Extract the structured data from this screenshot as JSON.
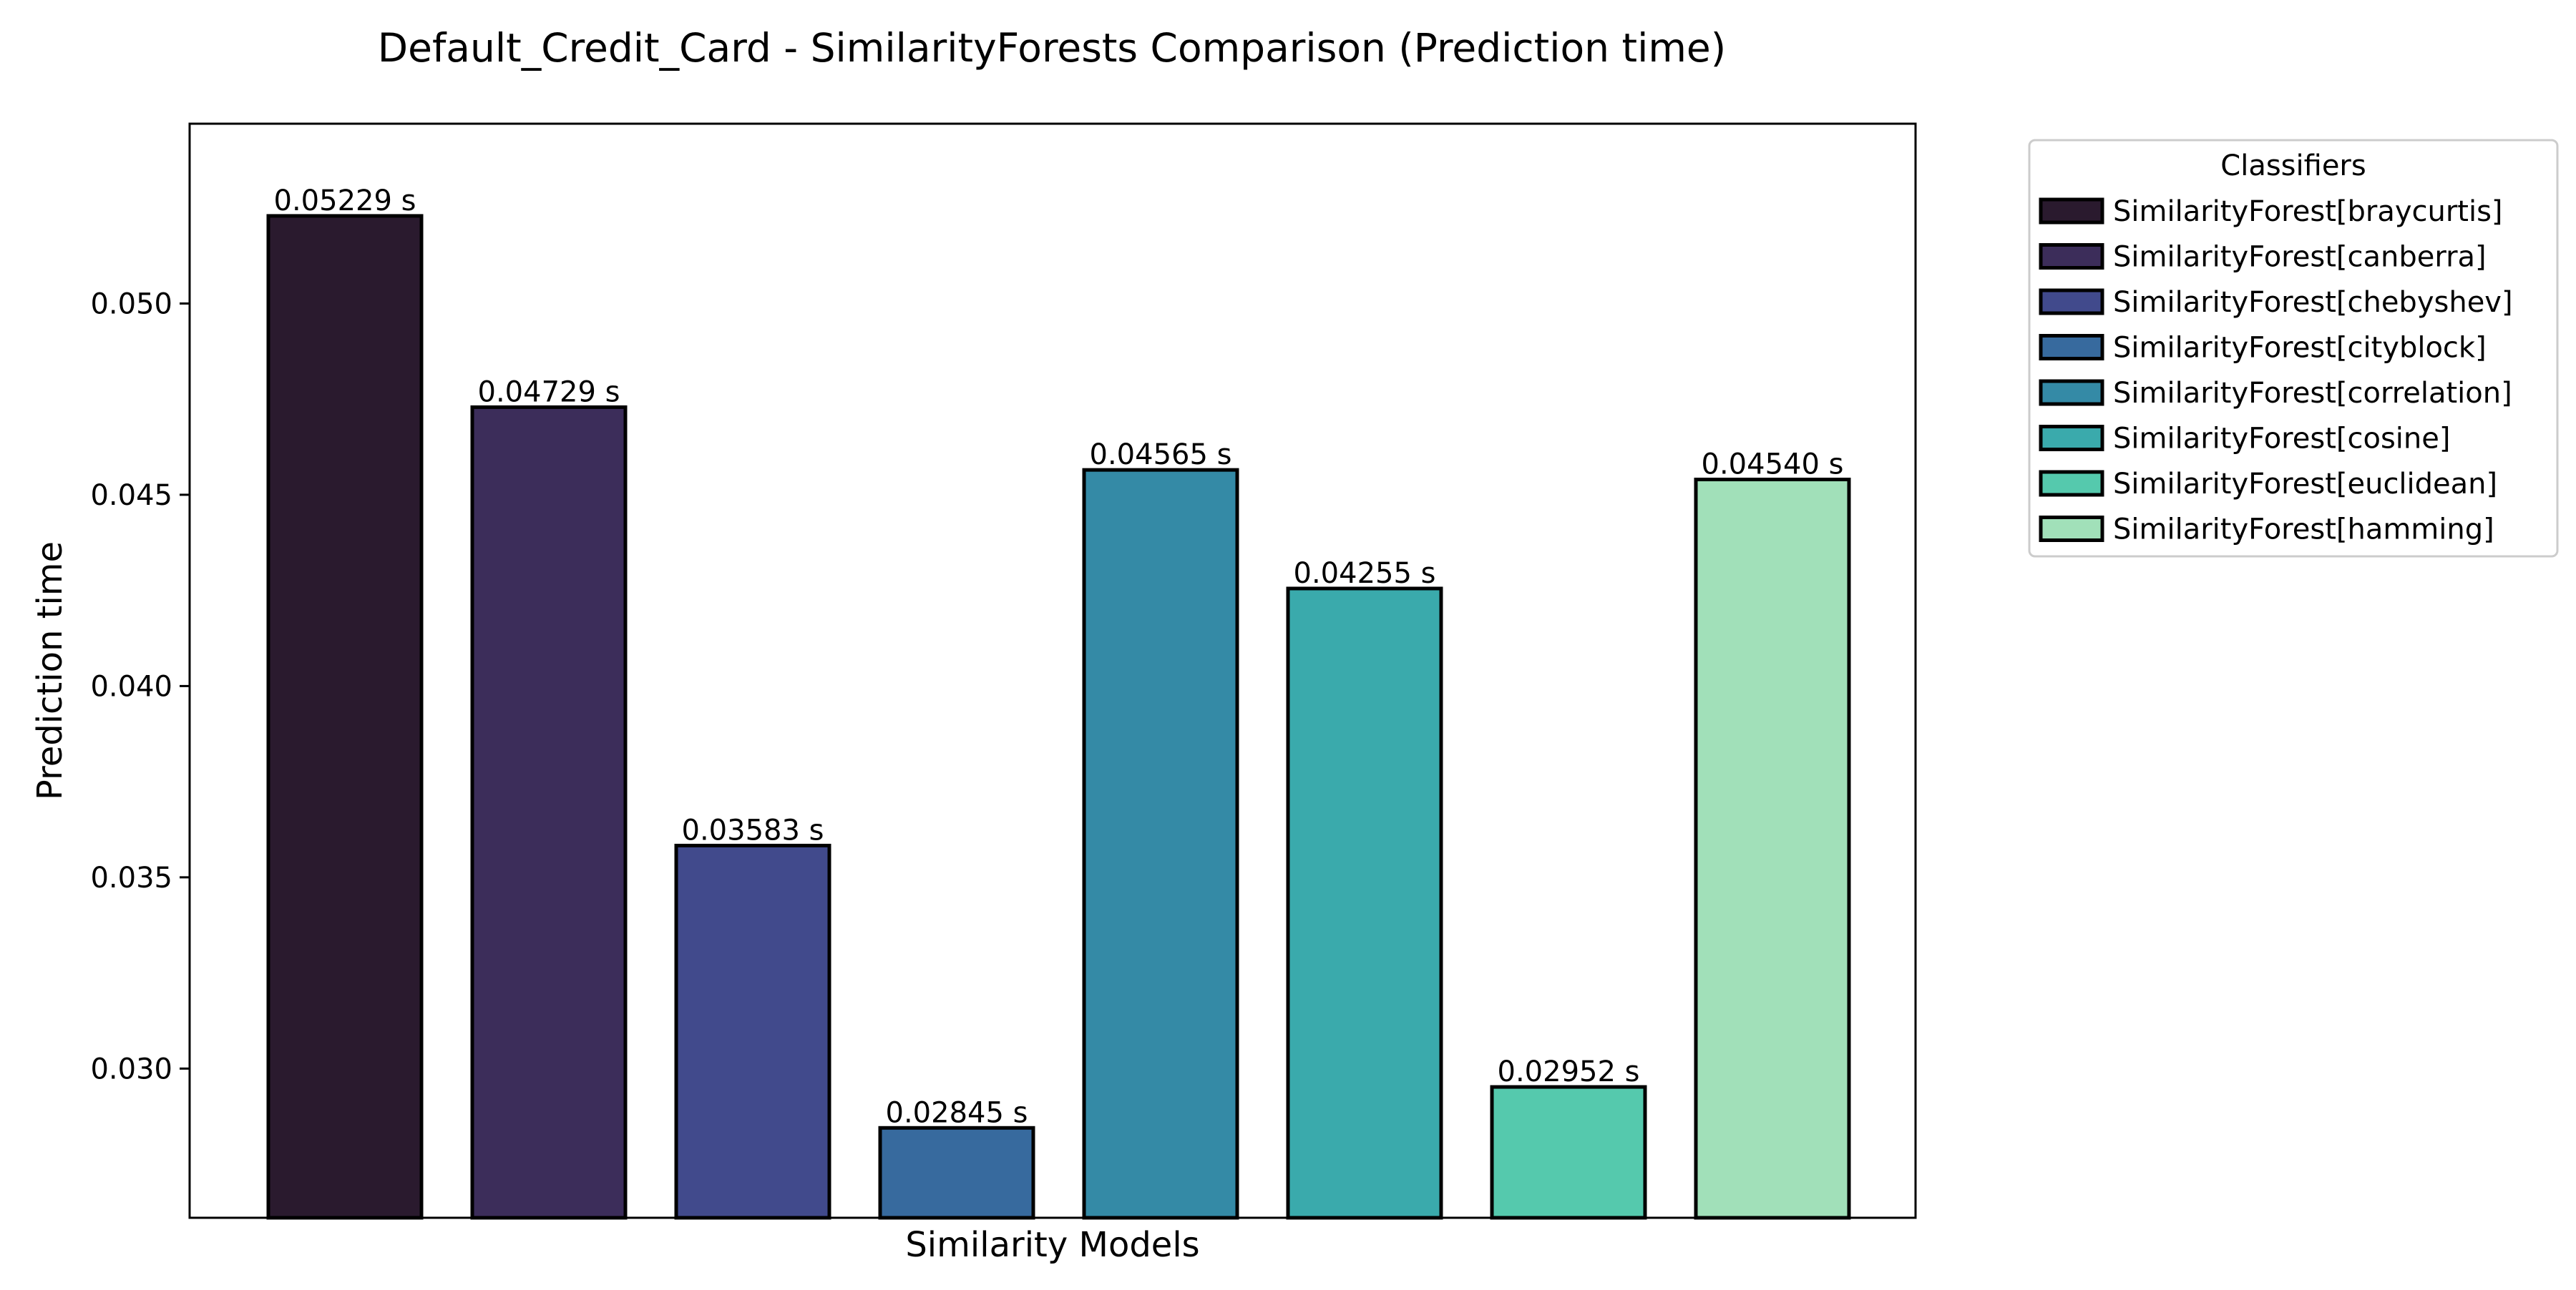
{
  "chart_data": {
    "type": "bar",
    "title": "Default_Credit_Card - SimilarityForests Comparison (Prediction time)",
    "xlabel": "Similarity Models",
    "ylabel": "Prediction time",
    "ylim": [
      0.0261,
      0.0547
    ],
    "yticks": [
      0.03,
      0.035,
      0.04,
      0.045,
      0.05
    ],
    "ytick_labels": [
      "0.030",
      "0.035",
      "0.040",
      "0.045",
      "0.050"
    ],
    "grid": false,
    "legend_title": "Classifiers",
    "legend_position": "outside-top-right",
    "categories": [
      "SimilarityForest[braycurtis]",
      "SimilarityForest[canberra]",
      "SimilarityForest[chebyshev]",
      "SimilarityForest[cityblock]",
      "SimilarityForest[correlation]",
      "SimilarityForest[cosine]",
      "SimilarityForest[euclidean]",
      "SimilarityForest[hamming]"
    ],
    "values": [
      0.05229,
      0.04729,
      0.03583,
      0.02845,
      0.04565,
      0.04255,
      0.02952,
      0.0454
    ],
    "value_labels": [
      "0.05229 s",
      "0.04729 s",
      "0.03583 s",
      "0.02845 s",
      "0.04565 s",
      "0.04255 s",
      "0.02952 s",
      "0.04540 s"
    ],
    "colors": [
      "#2a1a2e",
      "#3c2d5a",
      "#414a8c",
      "#376a9e",
      "#348aa6",
      "#3aaaac",
      "#55c9ad",
      "#a1e0b9"
    ],
    "edge_color": "#000000"
  }
}
